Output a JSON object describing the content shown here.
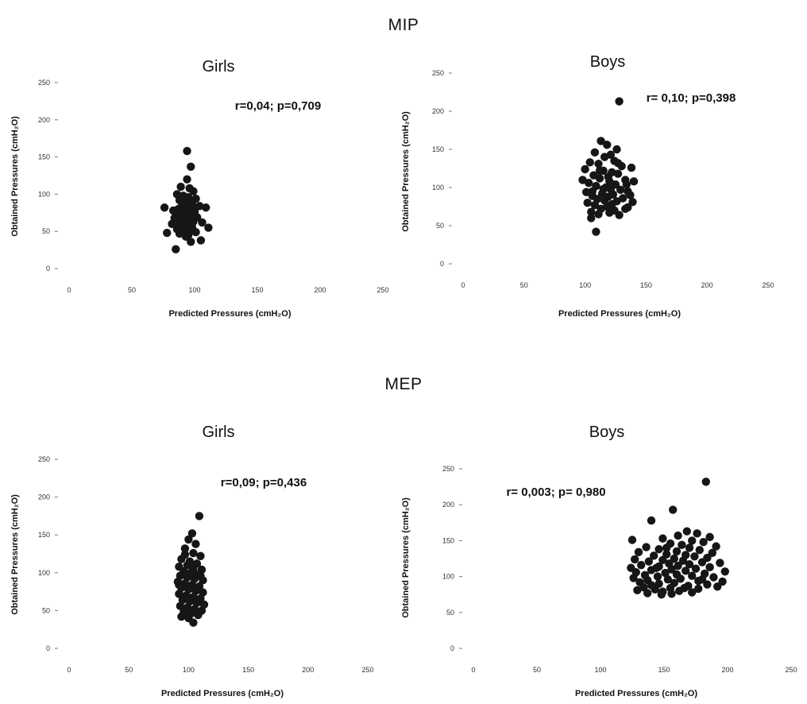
{
  "sections": {
    "mip": "MIP",
    "mep": "MEP"
  },
  "point_color": "#161616",
  "chart_data": [
    {
      "id": "mip-girls",
      "section": "MIP",
      "type": "scatter",
      "title": "Girls",
      "xlabel": "Predicted Pressures (cmH₂O)",
      "ylabel": "Obtained Pressures (cmH₂O)",
      "xlim": [
        0,
        250
      ],
      "ylim": [
        0,
        250
      ],
      "xticks": [
        "0",
        "50",
        "100",
        "150",
        "200",
        "250"
      ],
      "yticks": [
        "0",
        "50",
        "100",
        "150",
        "200",
        "250"
      ],
      "grid": false,
      "annotation": "r=0,04; p=0,709",
      "points": [
        [
          94,
          158
        ],
        [
          97,
          137
        ],
        [
          94,
          120
        ],
        [
          89,
          110
        ],
        [
          96,
          108
        ],
        [
          99,
          104
        ],
        [
          86,
          100
        ],
        [
          91,
          98
        ],
        [
          95,
          96
        ],
        [
          101,
          94
        ],
        [
          88,
          92
        ],
        [
          93,
          90
        ],
        [
          90,
          88
        ],
        [
          98,
          87
        ],
        [
          95,
          85
        ],
        [
          104,
          84
        ],
        [
          76,
          82
        ],
        [
          87,
          80
        ],
        [
          92,
          79
        ],
        [
          96,
          78
        ],
        [
          100,
          76
        ],
        [
          89,
          75
        ],
        [
          94,
          74
        ],
        [
          86,
          72
        ],
        [
          91,
          71
        ],
        [
          97,
          70
        ],
        [
          102,
          69
        ],
        [
          84,
          68
        ],
        [
          93,
          66
        ],
        [
          88,
          65
        ],
        [
          95,
          64
        ],
        [
          99,
          63
        ],
        [
          106,
          62
        ],
        [
          82,
          60
        ],
        [
          90,
          58
        ],
        [
          94,
          57
        ],
        [
          98,
          56
        ],
        [
          111,
          55
        ],
        [
          86,
          53
        ],
        [
          92,
          52
        ],
        [
          96,
          50
        ],
        [
          101,
          49
        ],
        [
          78,
          48
        ],
        [
          88,
          47
        ],
        [
          95,
          45
        ],
        [
          93,
          43
        ],
        [
          105,
          38
        ],
        [
          97,
          36
        ],
        [
          85,
          26
        ],
        [
          90,
          84
        ],
        [
          92,
          96
        ],
        [
          97,
          92
        ],
        [
          89,
          70
        ],
        [
          93,
          62
        ],
        [
          91,
          56
        ],
        [
          99,
          80
        ],
        [
          87,
          58
        ],
        [
          109,
          82
        ],
        [
          83,
          78
        ],
        [
          100,
          72
        ]
      ]
    },
    {
      "id": "mip-boys",
      "section": "MIP",
      "type": "scatter",
      "title": "Boys",
      "xlabel": "Predicted Pressures (cmH₂O)",
      "ylabel": "Obtained Pressures (cmH₂O)",
      "xlim": [
        0,
        250
      ],
      "ylim": [
        0,
        250
      ],
      "xticks": [
        "0",
        "50",
        "100",
        "150",
        "200",
        "250"
      ],
      "yticks": [
        "0",
        "50",
        "100",
        "150",
        "200",
        "250"
      ],
      "grid": false,
      "annotation": "r= 0,10; p=0,398",
      "points": [
        [
          128,
          213
        ],
        [
          113,
          161
        ],
        [
          118,
          156
        ],
        [
          126,
          150
        ],
        [
          108,
          146
        ],
        [
          121,
          143
        ],
        [
          116,
          140
        ],
        [
          124,
          135
        ],
        [
          104,
          133
        ],
        [
          111,
          131
        ],
        [
          130,
          128
        ],
        [
          138,
          126
        ],
        [
          100,
          124
        ],
        [
          115,
          122
        ],
        [
          122,
          120
        ],
        [
          127,
          118
        ],
        [
          107,
          116
        ],
        [
          119,
          114
        ],
        [
          112,
          112
        ],
        [
          133,
          110
        ],
        [
          140,
          108
        ],
        [
          103,
          106
        ],
        [
          125,
          104
        ],
        [
          109,
          102
        ],
        [
          117,
          100
        ],
        [
          121,
          98
        ],
        [
          129,
          97
        ],
        [
          135,
          95
        ],
        [
          101,
          94
        ],
        [
          114,
          92
        ],
        [
          123,
          91
        ],
        [
          106,
          89
        ],
        [
          119,
          88
        ],
        [
          131,
          86
        ],
        [
          110,
          85
        ],
        [
          116,
          83
        ],
        [
          126,
          82
        ],
        [
          139,
          81
        ],
        [
          102,
          80
        ],
        [
          122,
          78
        ],
        [
          108,
          77
        ],
        [
          118,
          75
        ],
        [
          135,
          74
        ],
        [
          113,
          72
        ],
        [
          124,
          70
        ],
        [
          105,
          68
        ],
        [
          120,
          67
        ],
        [
          111,
          65
        ],
        [
          128,
          64
        ],
        [
          133,
          72
        ],
        [
          105,
          60
        ],
        [
          109,
          42
        ],
        [
          137,
          90
        ],
        [
          134,
          104
        ],
        [
          98,
          110
        ],
        [
          112,
          122
        ],
        [
          127,
          132
        ],
        [
          120,
          108
        ],
        [
          115,
          98
        ],
        [
          106,
          95
        ]
      ]
    },
    {
      "id": "mep-girls",
      "section": "MEP",
      "type": "scatter",
      "title": "Girls",
      "xlabel": "Predicted Pressures (cmH₂O)",
      "ylabel": "Obtained Pressures (cmH₂O)",
      "xlim": [
        0,
        250
      ],
      "ylim": [
        0,
        250
      ],
      "xticks": [
        "0",
        "50",
        "100",
        "150",
        "200",
        "250"
      ],
      "yticks": [
        "0",
        "50",
        "100",
        "150",
        "200",
        "250"
      ],
      "grid": false,
      "annotation": "r=0,09; p=0,436",
      "points": [
        [
          109,
          175
        ],
        [
          103,
          152
        ],
        [
          100,
          144
        ],
        [
          106,
          138
        ],
        [
          97,
          132
        ],
        [
          104,
          126
        ],
        [
          110,
          122
        ],
        [
          94,
          118
        ],
        [
          101,
          115
        ],
        [
          107,
          112
        ],
        [
          99,
          110
        ],
        [
          92,
          108
        ],
        [
          104,
          106
        ],
        [
          111,
          104
        ],
        [
          96,
          102
        ],
        [
          102,
          100
        ],
        [
          108,
          98
        ],
        [
          93,
          96
        ],
        [
          99,
          94
        ],
        [
          105,
          92
        ],
        [
          112,
          90
        ],
        [
          91,
          88
        ],
        [
          97,
          86
        ],
        [
          103,
          84
        ],
        [
          109,
          82
        ],
        [
          94,
          80
        ],
        [
          100,
          78
        ],
        [
          106,
          76
        ],
        [
          112,
          74
        ],
        [
          92,
          72
        ],
        [
          98,
          70
        ],
        [
          104,
          68
        ],
        [
          110,
          66
        ],
        [
          95,
          64
        ],
        [
          101,
          62
        ],
        [
          107,
          60
        ],
        [
          113,
          58
        ],
        [
          93,
          56
        ],
        [
          99,
          54
        ],
        [
          105,
          52
        ],
        [
          111,
          50
        ],
        [
          96,
          48
        ],
        [
          102,
          46
        ],
        [
          108,
          44
        ],
        [
          94,
          42
        ],
        [
          100,
          40
        ],
        [
          104,
          34
        ],
        [
          97,
          124
        ],
        [
          110,
          96
        ],
        [
          92,
          84
        ]
      ]
    },
    {
      "id": "mep-boys",
      "section": "MEP",
      "type": "scatter",
      "title": "Boys",
      "xlabel": "Predicted Pressures (cmH₂O)",
      "ylabel": "Obtained Pressures (cmH₂O)",
      "xlim": [
        0,
        250
      ],
      "ylim": [
        0,
        250
      ],
      "xticks": [
        "0",
        "50",
        "100",
        "150",
        "200",
        "250"
      ],
      "yticks": [
        "0",
        "50",
        "100",
        "150",
        "200",
        "250"
      ],
      "grid": false,
      "annotation": "r= 0,003; p= 0,980",
      "points": [
        [
          183,
          232
        ],
        [
          157,
          193
        ],
        [
          140,
          178
        ],
        [
          168,
          163
        ],
        [
          176,
          160
        ],
        [
          161,
          157
        ],
        [
          186,
          155
        ],
        [
          149,
          153
        ],
        [
          125,
          151
        ],
        [
          172,
          150
        ],
        [
          181,
          148
        ],
        [
          155,
          146
        ],
        [
          164,
          144
        ],
        [
          191,
          142
        ],
        [
          136,
          141
        ],
        [
          170,
          140
        ],
        [
          146,
          138
        ],
        [
          178,
          137
        ],
        [
          160,
          135
        ],
        [
          130,
          134
        ],
        [
          188,
          133
        ],
        [
          152,
          131
        ],
        [
          167,
          130
        ],
        [
          142,
          129
        ],
        [
          174,
          128
        ],
        [
          184,
          126
        ],
        [
          158,
          125
        ],
        [
          127,
          124
        ],
        [
          149,
          123
        ],
        [
          165,
          122
        ],
        [
          138,
          121
        ],
        [
          180,
          120
        ],
        [
          194,
          119
        ],
        [
          154,
          118
        ],
        [
          170,
          117
        ],
        [
          132,
          116
        ],
        [
          161,
          115
        ],
        [
          146,
          114
        ],
        [
          186,
          113
        ],
        [
          124,
          112
        ],
        [
          175,
          111
        ],
        [
          156,
          110
        ],
        [
          140,
          109
        ],
        [
          167,
          108
        ],
        [
          198,
          107
        ],
        [
          128,
          106
        ],
        [
          151,
          105
        ],
        [
          182,
          104
        ],
        [
          160,
          103
        ],
        [
          135,
          102
        ],
        [
          172,
          101
        ],
        [
          145,
          100
        ],
        [
          189,
          99
        ],
        [
          126,
          98
        ],
        [
          163,
          97
        ],
        [
          153,
          96
        ],
        [
          137,
          95
        ],
        [
          177,
          94
        ],
        [
          196,
          93
        ],
        [
          131,
          92
        ],
        [
          158,
          91
        ],
        [
          146,
          90
        ],
        [
          184,
          89
        ],
        [
          140,
          88
        ],
        [
          169,
          87
        ],
        [
          192,
          86
        ],
        [
          134,
          85
        ],
        [
          155,
          84
        ],
        [
          177,
          83
        ],
        [
          143,
          82
        ],
        [
          129,
          81
        ],
        [
          162,
          80
        ],
        [
          149,
          79
        ],
        [
          172,
          78
        ],
        [
          137,
          77
        ],
        [
          156,
          76
        ],
        [
          148,
          75
        ],
        [
          166,
          84
        ],
        [
          180,
          96
        ],
        [
          152,
          140
        ],
        [
          144,
          112
        ]
      ]
    }
  ]
}
